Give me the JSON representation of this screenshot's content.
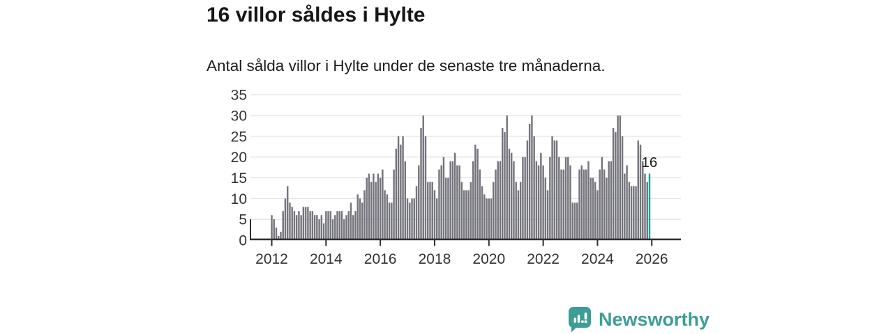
{
  "header": {
    "title": "16 villor såldes i Hylte",
    "subtitle": "Antal sålda villor i Hylte under de senaste tre månaderna."
  },
  "footer": {
    "brand": "Newsworthy",
    "logo_icon": "newsworthy-chart-bubble-icon"
  },
  "colors": {
    "bar": "#75757d",
    "highlight": "#00a79c",
    "logo_teal": "#3e9d95",
    "grid": "#e2e2e2",
    "axis": "#2e2e2e",
    "tick_label": "#333333",
    "annotation": "#1b1b1b"
  },
  "chart_data": {
    "type": "bar",
    "title": "16 villor såldes i Hylte",
    "subtitle": "Antal sålda villor i Hylte under de senaste tre månaderna.",
    "x_start_month": "2012-01",
    "x_end_month": "2025-12",
    "x_tick_labels": [
      "2012",
      "2014",
      "2016",
      "2018",
      "2020",
      "2022",
      "2024",
      "2026"
    ],
    "x_tick_years": [
      2012,
      2014,
      2016,
      2018,
      2020,
      2022,
      2024,
      2026
    ],
    "y_ticks": [
      0,
      5,
      10,
      15,
      20,
      25,
      30,
      35
    ],
    "ylim": [
      0,
      35
    ],
    "grid": true,
    "legend": "none",
    "highlight_index": 167,
    "highlight_label": "16",
    "values": [
      6,
      5,
      3,
      1,
      2,
      7,
      10,
      13,
      9,
      8,
      7,
      6,
      7,
      6,
      8,
      8,
      8,
      7,
      7,
      6,
      6,
      5,
      6,
      4,
      7,
      7,
      7,
      5,
      6,
      7,
      7,
      7,
      5,
      6,
      7,
      9,
      6,
      7,
      11,
      10,
      9,
      12,
      15,
      16,
      14,
      16,
      14,
      16,
      15,
      17,
      12,
      11,
      9,
      9,
      17,
      22,
      25,
      23,
      25,
      19,
      10,
      9,
      10,
      10,
      13,
      18,
      27,
      30,
      25,
      14,
      14,
      14,
      12,
      10,
      17,
      18,
      20,
      15,
      15,
      19,
      19,
      21,
      18,
      18,
      14,
      12,
      12,
      12,
      14,
      19,
      23,
      22,
      17,
      13,
      11,
      10,
      10,
      10,
      14,
      17,
      19,
      19,
      27,
      26,
      30,
      22,
      21,
      19,
      14,
      12,
      14,
      20,
      20,
      24,
      28,
      30,
      25,
      19,
      18,
      21,
      18,
      15,
      12,
      20,
      25,
      24,
      24,
      20,
      17,
      17,
      20,
      20,
      18,
      9,
      9,
      9,
      17,
      18,
      17,
      17,
      19,
      15,
      15,
      14,
      12,
      17,
      20,
      17,
      15,
      19,
      19,
      27,
      26,
      30,
      30,
      25,
      16,
      18,
      14,
      13,
      13,
      13,
      24,
      23,
      19,
      16,
      14,
      16
    ]
  }
}
